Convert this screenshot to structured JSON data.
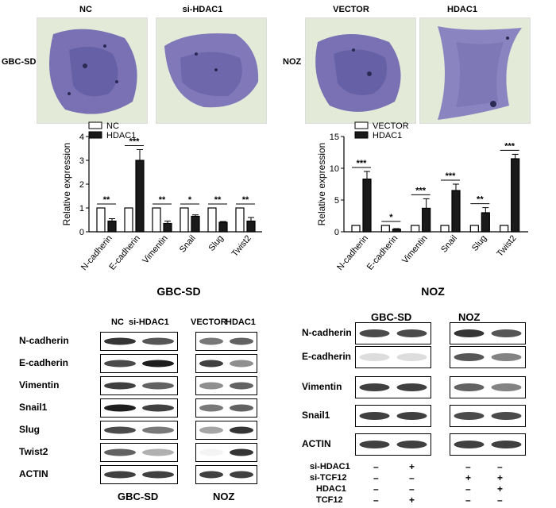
{
  "panel_a": {
    "col_headers": [
      "NC",
      "si-HDAC1",
      "VECTOR",
      "HDAC1"
    ],
    "row_labels": [
      "GBC-SD",
      "NOZ"
    ]
  },
  "chart_data": [
    {
      "type": "bar",
      "title": "GBC-SD",
      "ylabel": "Relative expression",
      "categories": [
        "N-cadherin",
        "E-cadherin",
        "Vimentin",
        "Snail",
        "Slug",
        "Twist2"
      ],
      "ylim": [
        0,
        4
      ],
      "yticks": [
        "0",
        "1",
        "2",
        "3",
        "4"
      ],
      "series": [
        {
          "name": "NC",
          "values": [
            1,
            1,
            1,
            1,
            1,
            1
          ],
          "errors": [
            0,
            0,
            0,
            0,
            0,
            0
          ]
        },
        {
          "name": "HDAC1",
          "values": [
            0.45,
            3.0,
            0.35,
            0.65,
            0.4,
            0.45
          ],
          "errors": [
            0.1,
            0.45,
            0.1,
            0.06,
            0.03,
            0.15
          ]
        }
      ],
      "significance": [
        "**",
        "***",
        "**",
        "*",
        "**",
        "**"
      ]
    },
    {
      "type": "bar",
      "title": "NOZ",
      "ylabel": "Relative expression",
      "categories": [
        "N-cadherin",
        "E-cadherin",
        "Vimentin",
        "Snail",
        "Slug",
        "Twist2"
      ],
      "ylim": [
        0,
        15
      ],
      "yticks": [
        "0",
        "5",
        "10",
        "15"
      ],
      "series": [
        {
          "name": "VECTOR",
          "values": [
            1,
            1,
            1,
            1,
            1,
            1
          ],
          "errors": [
            0,
            0,
            0,
            0,
            0,
            0
          ]
        },
        {
          "name": "HDAC1",
          "values": [
            8.3,
            0.4,
            3.7,
            6.5,
            3.0,
            11.5
          ],
          "errors": [
            1.2,
            0.1,
            1.5,
            1.0,
            0.8,
            0.7
          ]
        }
      ],
      "significance": [
        "***",
        "*",
        "***",
        "***",
        "**",
        "***"
      ]
    }
  ],
  "blot_left": {
    "rows": [
      "N-cadherin",
      "E-cadherin",
      "Vimentin",
      "Snail1",
      "Slug",
      "Twist2",
      "ACTIN"
    ],
    "group1_lanes": [
      "NC",
      "si-HDAC1"
    ],
    "group2_lanes": [
      "VECTOR",
      "HDAC1"
    ],
    "group1_name": "GBC-SD",
    "group2_name": "NOZ"
  },
  "blot_right": {
    "rows": [
      "N-cadherin",
      "E-cadherin",
      "Vimentin",
      "Snail1",
      "ACTIN"
    ],
    "group1_name": "GBC-SD",
    "group2_name": "NOZ",
    "conditions": [
      {
        "label": "si-HDAC1",
        "marks": [
          "–",
          "+",
          "–",
          "–"
        ]
      },
      {
        "label": "si-TCF12",
        "marks": [
          "–",
          "–",
          "+",
          "+"
        ]
      },
      {
        "label": "HDAC1",
        "marks": [
          "–",
          "–",
          "–",
          "+"
        ]
      },
      {
        "label": "TCF12",
        "marks": [
          "–",
          "+",
          "–",
          "–"
        ]
      }
    ]
  }
}
